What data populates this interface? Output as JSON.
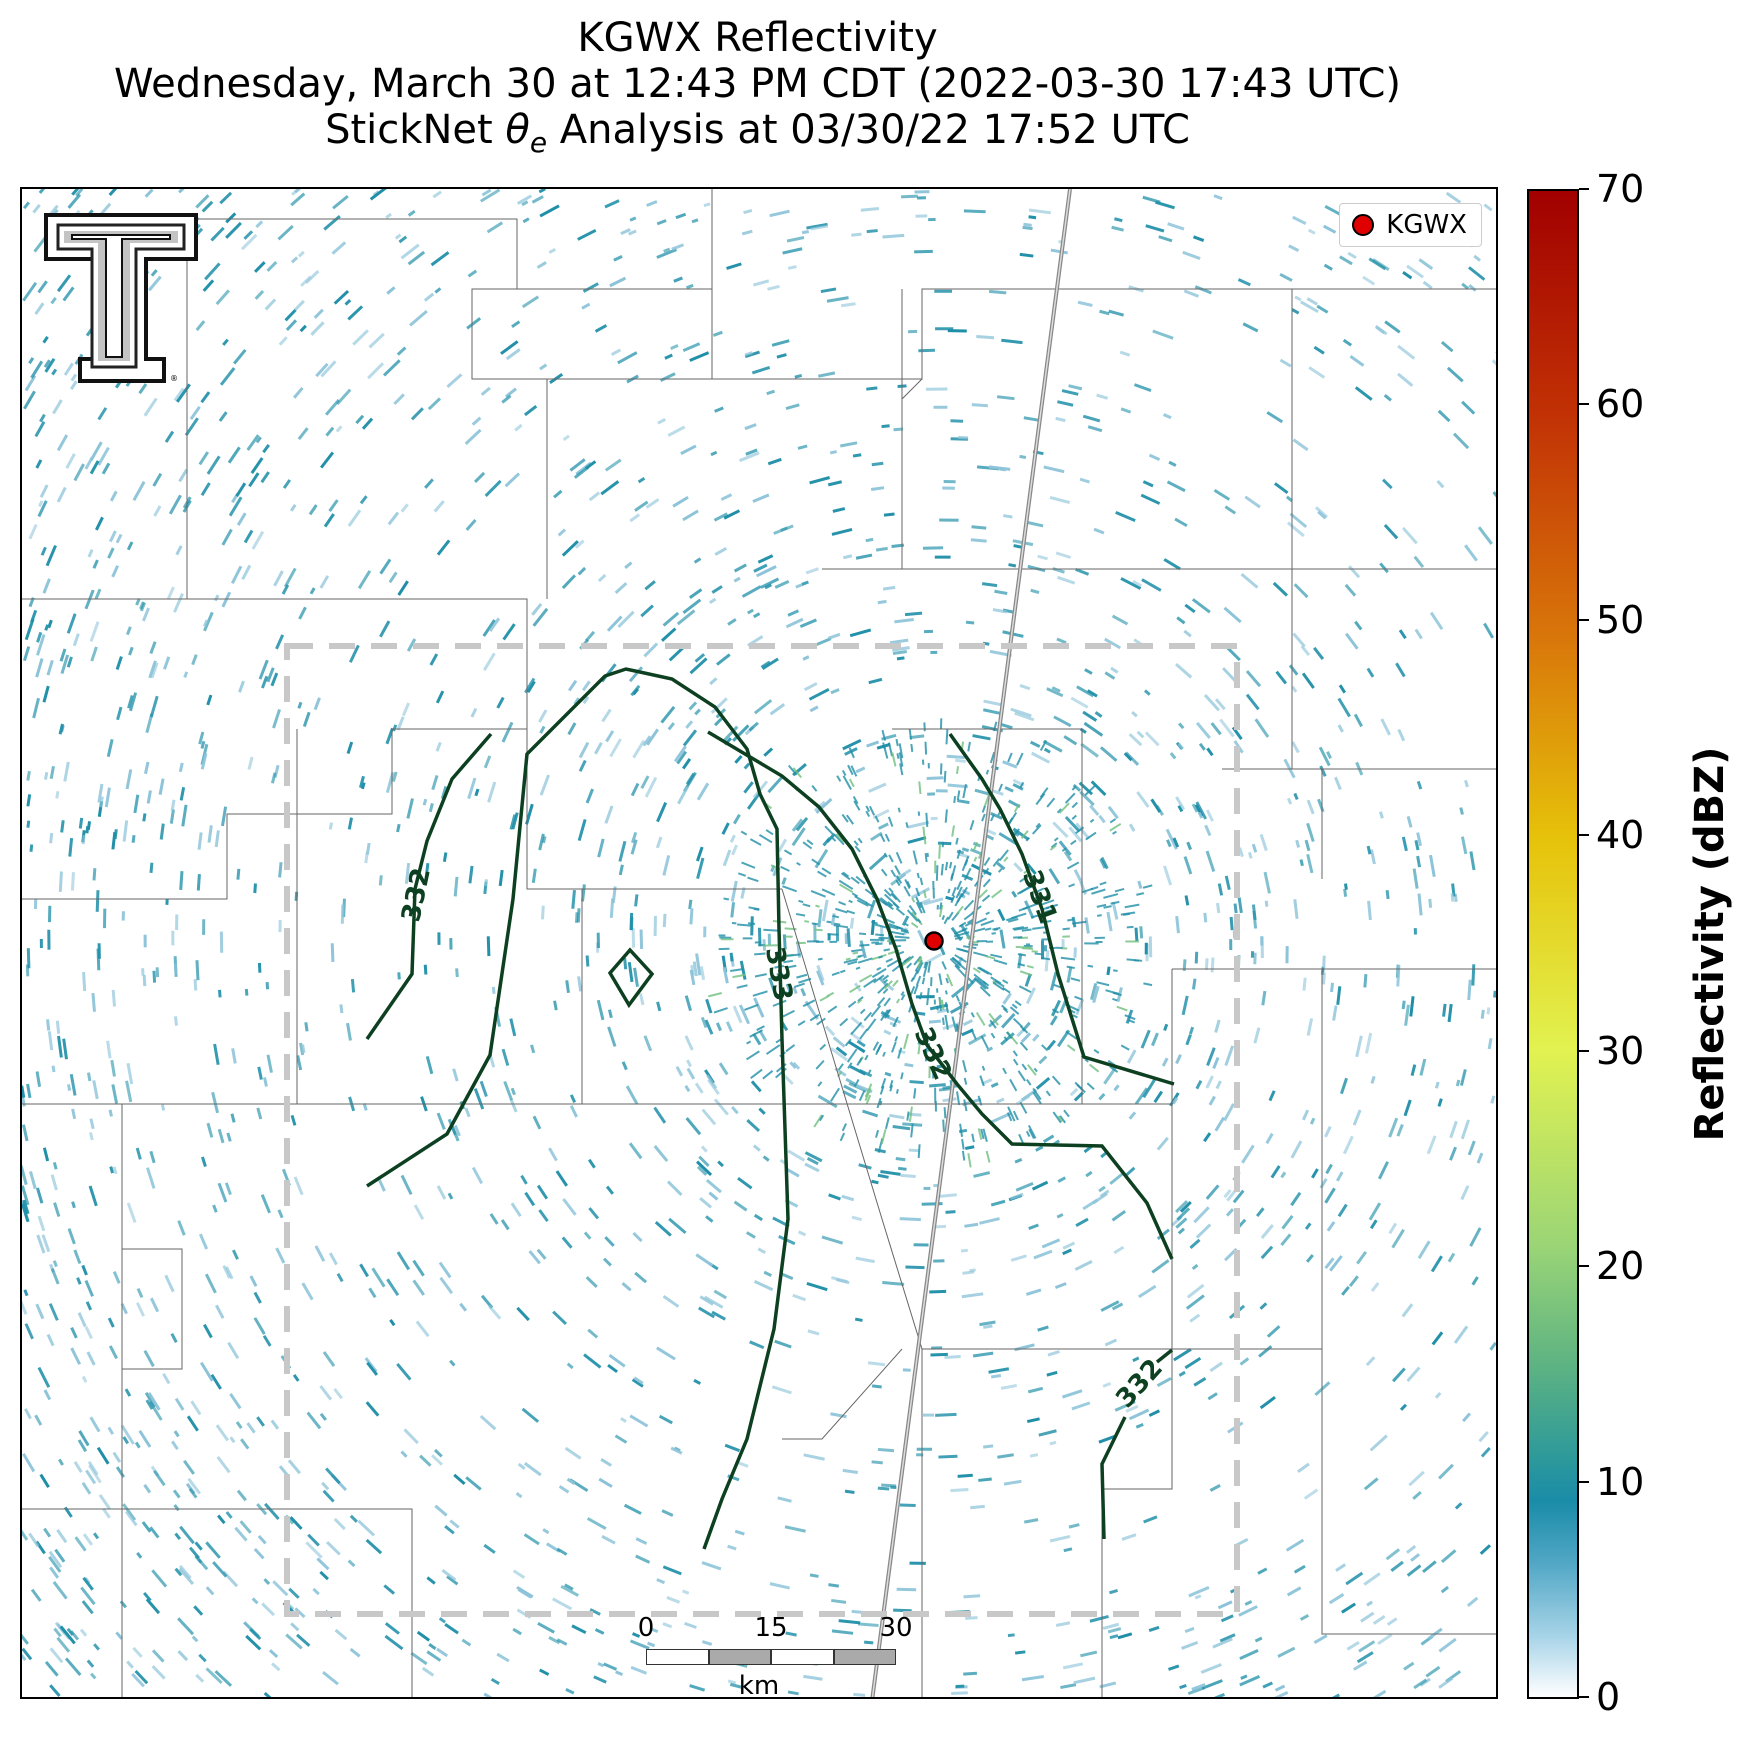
{
  "title": {
    "line1": "KGWX Reflectivity",
    "line2": "Wednesday, March 30 at 12:43 PM CDT (2022-03-30 17:43 UTC)",
    "line3_pre": "StickNet ",
    "line3_symbol": "θ",
    "line3_sub": "e",
    "line3_post": " Analysis at 03/30/22 17:52 UTC"
  },
  "legend": {
    "label": "KGWX",
    "marker_color": "#e00000"
  },
  "logo": {
    "name": "texas-tech-double-t-logo"
  },
  "colorbar": {
    "title": "Reflectivity (dBZ)",
    "ticks": [
      "0",
      "10",
      "20",
      "30",
      "40",
      "50",
      "60",
      "70"
    ],
    "range": [
      0,
      70
    ]
  },
  "scalebar": {
    "labels": [
      "0",
      "15",
      "30"
    ],
    "unit": "km"
  },
  "contours": {
    "color": "#0d4020",
    "labels": [
      "332",
      "333",
      "332",
      "331",
      "332"
    ]
  },
  "radar": {
    "echo_color": "#1f8fa8",
    "light_color": "#8cc3d9"
  }
}
